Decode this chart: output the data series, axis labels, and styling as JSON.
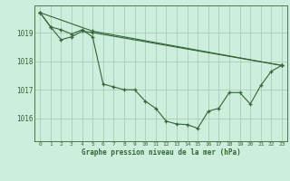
{
  "background_color": "#cceedd",
  "grid_color": "#aaccbb",
  "line_color": "#336633",
  "xlabel": "Graphe pression niveau de la mer (hPa)",
  "xlim": [
    -0.5,
    23.5
  ],
  "ylim": [
    1015.2,
    1019.95
  ],
  "yticks": [
    1016,
    1017,
    1018,
    1019
  ],
  "xticks": [
    0,
    1,
    2,
    3,
    4,
    5,
    6,
    7,
    8,
    9,
    10,
    11,
    12,
    13,
    14,
    15,
    16,
    17,
    18,
    19,
    20,
    21,
    22,
    23
  ],
  "series": [
    {
      "x": [
        0,
        1,
        2,
        3,
        4,
        5,
        6,
        7,
        8,
        9,
        10,
        11,
        12,
        13,
        14,
        15,
        16,
        17,
        18,
        19,
        20,
        21,
        22,
        23
      ],
      "y": [
        1019.7,
        1019.2,
        1019.1,
        1018.95,
        1019.1,
        1018.85,
        1017.2,
        1017.1,
        1017.0,
        1017.0,
        1016.6,
        1016.35,
        1015.9,
        1015.8,
        1015.78,
        1015.65,
        1016.25,
        1016.35,
        1016.9,
        1016.9,
        1016.5,
        1017.15,
        1017.65,
        1017.85
      ]
    },
    {
      "x": [
        0,
        1,
        2,
        3,
        4,
        5,
        23
      ],
      "y": [
        1019.7,
        1019.2,
        1018.75,
        1018.85,
        1019.05,
        1019.0,
        1017.85
      ]
    },
    {
      "x": [
        0,
        5,
        23
      ],
      "y": [
        1019.7,
        1019.05,
        1017.85
      ]
    }
  ]
}
